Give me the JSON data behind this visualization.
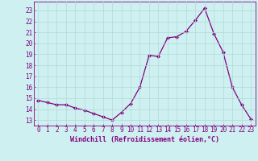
{
  "x": [
    0,
    1,
    2,
    3,
    4,
    5,
    6,
    7,
    8,
    9,
    10,
    11,
    12,
    13,
    14,
    15,
    16,
    17,
    18,
    19,
    20,
    21,
    22,
    23
  ],
  "y": [
    14.8,
    14.6,
    14.4,
    14.4,
    14.1,
    13.9,
    13.6,
    13.3,
    13.0,
    13.7,
    14.5,
    16.0,
    18.9,
    18.8,
    20.5,
    20.6,
    21.1,
    22.1,
    23.2,
    20.9,
    19.2,
    16.0,
    14.4,
    13.1
  ],
  "x_ticks": [
    0,
    1,
    2,
    3,
    4,
    5,
    6,
    7,
    8,
    9,
    10,
    11,
    12,
    13,
    14,
    15,
    16,
    17,
    18,
    19,
    20,
    21,
    22,
    23
  ],
  "y_ticks": [
    13,
    14,
    15,
    16,
    17,
    18,
    19,
    20,
    21,
    22,
    23
  ],
  "ylim": [
    12.5,
    23.8
  ],
  "xlim": [
    -0.5,
    23.5
  ],
  "xlabel": "Windchill (Refroidissement éolien,°C)",
  "line_color": "#800080",
  "marker": "D",
  "marker_size": 2.0,
  "bg_color": "#cff0f0",
  "grid_color": "#b0d8d8",
  "tick_color": "#800080",
  "xlabel_color": "#800080",
  "tick_fontsize": 5.5,
  "xlabel_fontsize": 6.0
}
